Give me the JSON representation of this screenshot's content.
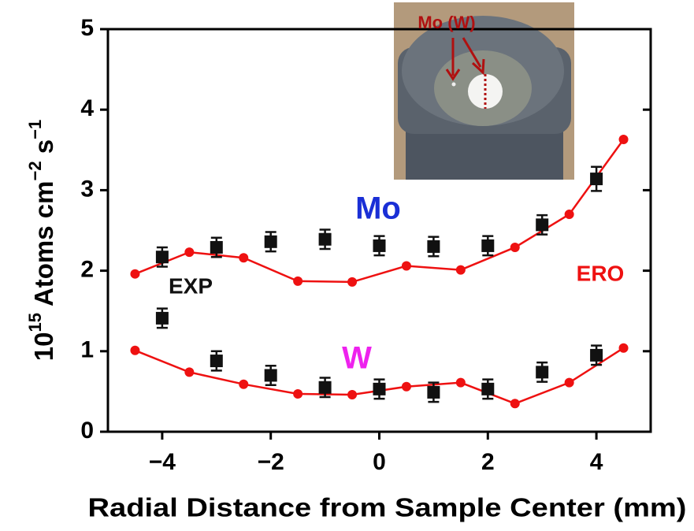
{
  "chart_data": {
    "type": "scatter-line",
    "x_label": "Radial Distance from Sample Center (mm)",
    "y_label": [
      "10",
      "15",
      " Atoms cm",
      "−2",
      " s",
      "−1"
    ],
    "xlim": [
      -5,
      5
    ],
    "ylim": [
      0,
      5
    ],
    "xticks": [
      {
        "value": -4,
        "label": "−4"
      },
      {
        "value": -2,
        "label": "−2"
      },
      0,
      2,
      4
    ],
    "yticks": [
      0,
      1,
      2,
      3,
      4,
      5
    ],
    "series": [
      {
        "marker": "line-circle",
        "color": "#ee1111",
        "x": [
          -4.5,
          -3.5,
          -2.5,
          -1.5,
          -0.5,
          0.5,
          1.5,
          2.5,
          3.5,
          4.5
        ],
        "values": [
          1.96,
          2.23,
          2.16,
          1.87,
          1.86,
          2.06,
          2.01,
          2.29,
          2.7,
          3.63
        ]
      },
      {
        "marker": "line-circle",
        "color": "#ee1111",
        "x": [
          -4.5,
          -3.5,
          -2.5,
          -1.5,
          -0.5,
          0.5,
          1.5,
          2.5,
          3.5,
          4.5
        ],
        "values": [
          1.01,
          0.74,
          0.59,
          0.47,
          0.46,
          0.56,
          0.61,
          0.35,
          0.61,
          1.04
        ]
      },
      {
        "marker": "square-error",
        "color": "#111111",
        "x": [
          -4,
          -4,
          -3,
          -2,
          -1,
          0,
          1,
          2,
          3,
          4
        ],
        "values": [
          2.17,
          1.41,
          2.29,
          2.36,
          2.39,
          2.31,
          2.3,
          2.31,
          2.57,
          3.14
        ],
        "errors": [
          0.12,
          0.12,
          0.12,
          0.12,
          0.12,
          0.12,
          0.12,
          0.12,
          0.12,
          0.15
        ]
      },
      {
        "marker": "square-error",
        "color": "#111111",
        "x": [
          -3,
          -2,
          -1,
          0,
          1,
          2,
          3,
          4
        ],
        "values": [
          0.88,
          0.7,
          0.55,
          0.53,
          0.49,
          0.53,
          0.74,
          0.95
        ],
        "errors": [
          0.12,
          0.12,
          0.12,
          0.12,
          0.12,
          0.12,
          0.12,
          0.12
        ]
      }
    ],
    "annotations": [
      {
        "text": "Mo",
        "color": "#1a2fd6"
      },
      {
        "text": "W",
        "color": "#ee22ee"
      },
      {
        "text": "EXP",
        "color": "#111111"
      },
      {
        "text": "ERO",
        "color": "#ee1111"
      },
      {
        "text": "Mo (W)",
        "color": "#b01010"
      }
    ]
  }
}
